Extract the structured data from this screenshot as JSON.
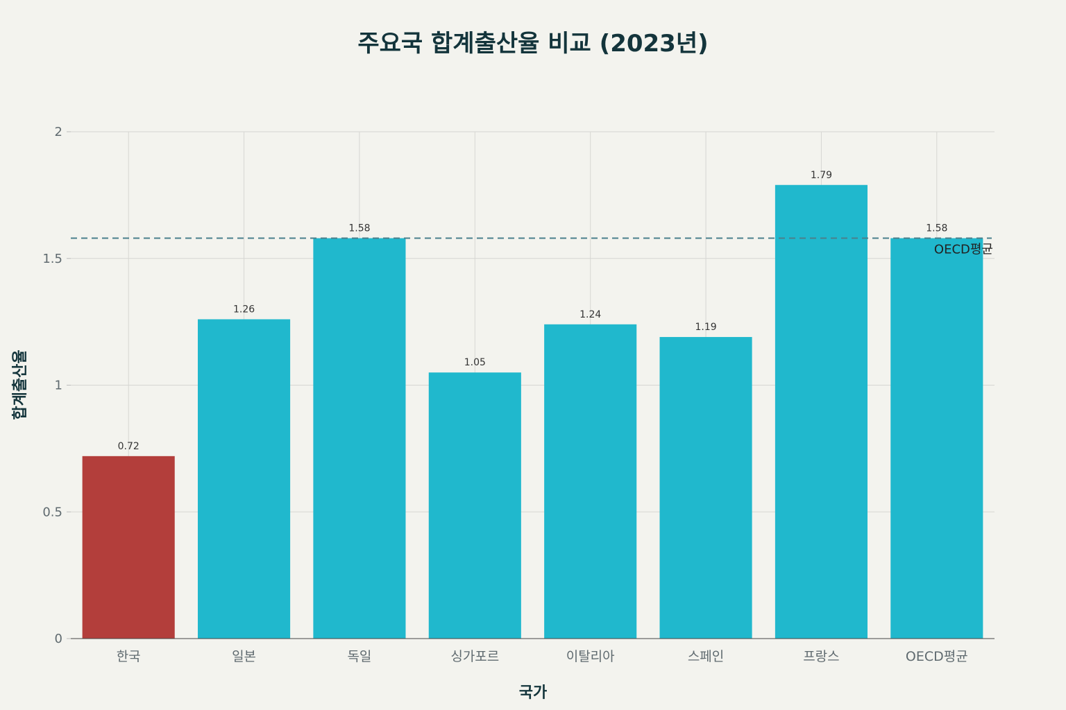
{
  "chart_data": {
    "type": "bar",
    "title": "주요국 합계출산율 비교 (2023년)",
    "xlabel": "국가",
    "ylabel": "합계출산율",
    "categories": [
      "한국",
      "일본",
      "독일",
      "싱가포르",
      "이탈리아",
      "스페인",
      "프랑스",
      "OECD평균"
    ],
    "values": [
      0.72,
      1.26,
      1.58,
      1.05,
      1.24,
      1.19,
      1.79,
      1.58
    ],
    "value_labels": [
      "0.72",
      "1.26",
      "1.58",
      "1.05",
      "1.24",
      "1.19",
      "1.79",
      "1.58"
    ],
    "ylim": [
      0,
      2
    ],
    "yticks": [
      0,
      0.5,
      1,
      1.5,
      2
    ],
    "ytick_labels": [
      "0",
      "0.5",
      "1",
      "1.5",
      "2"
    ],
    "grid": true,
    "legend": "none",
    "colors": {
      "highlight": "#b33e3b",
      "bar": "#20b8cd",
      "reference_line": "#4a7f8c"
    },
    "highlight_index": 0,
    "reference_line": {
      "value": 1.58,
      "label": "OECD평균",
      "style": "dashed"
    }
  }
}
